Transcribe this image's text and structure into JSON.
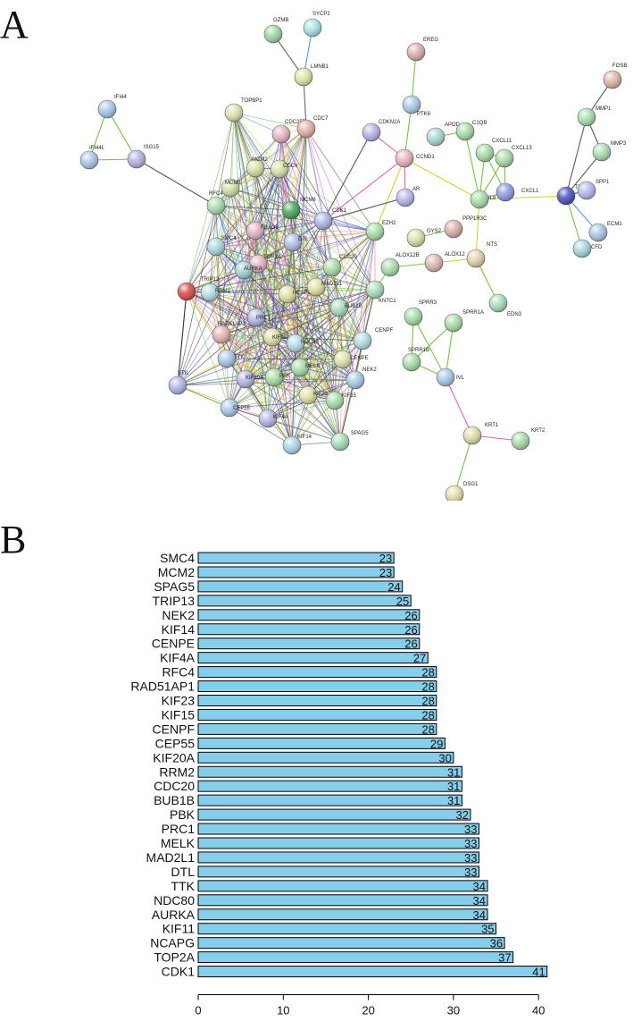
{
  "panels": {
    "a": "A",
    "b": "B"
  },
  "network": {
    "nodes": [
      {
        "id": "GZMB",
        "color": "#9fd6a3"
      },
      {
        "id": "SYCP2",
        "color": "#a7e3e6"
      },
      {
        "id": "LMNB1",
        "color": "#e0e6a8"
      },
      {
        "id": "EREG",
        "color": "#d9aeb0"
      },
      {
        "id": "PTK6",
        "color": "#a9cbe8"
      },
      {
        "id": "FOSB",
        "color": "#dcb5a6"
      },
      {
        "id": "IFI44",
        "color": "#a9c8e6"
      },
      {
        "id": "IFI44L",
        "color": "#a9c8e6"
      },
      {
        "id": "ISG15",
        "color": "#b5b3e4"
      },
      {
        "id": "TOPBP1",
        "color": "#dfe0a9"
      },
      {
        "id": "CDC25B",
        "color": "#e4b3c1"
      },
      {
        "id": "CDC7",
        "color": "#e4b0a8"
      },
      {
        "id": "CDKN2A",
        "color": "#b6b3e6"
      },
      {
        "id": "APOD",
        "color": "#a8d8d6"
      },
      {
        "id": "C1QB",
        "color": "#a8dca6"
      },
      {
        "id": "CCND1",
        "color": "#e8b3c0"
      },
      {
        "id": "CXCL11",
        "color": "#a8dca8"
      },
      {
        "id": "CXCL13",
        "color": "#a8dca8"
      },
      {
        "id": "MMP1",
        "color": "#a9dcb0"
      },
      {
        "id": "MMP3",
        "color": "#a9dcb0"
      },
      {
        "id": "MCM2",
        "color": "#d3e0a4"
      },
      {
        "id": "CDC6",
        "color": "#d9e0a4"
      },
      {
        "id": "MCM3",
        "color": "#cfe3a8"
      },
      {
        "id": "MCM6",
        "color": "#49a558"
      },
      {
        "id": "AR",
        "color": "#b3b8ec"
      },
      {
        "id": "IL8",
        "color": "#a9dca9"
      },
      {
        "id": "CXCL1",
        "color": "#8e9ae0"
      },
      {
        "id": "TIMP1",
        "color": "#4a4fbf"
      },
      {
        "id": "SPP1",
        "color": "#b5b8ec"
      },
      {
        "id": "RFC4",
        "color": "#aadcaf"
      },
      {
        "id": "FBXO5",
        "color": "#e0b5c4"
      },
      {
        "id": "CDK1",
        "color": "#aeb4e8"
      },
      {
        "id": "EZH2",
        "color": "#a8dca8"
      },
      {
        "id": "ECM1",
        "color": "#a9c8e6"
      },
      {
        "id": "GYS2",
        "color": "#d8e0a4"
      },
      {
        "id": "PPP1R3C",
        "color": "#d9b0a8"
      },
      {
        "id": "SMC4",
        "color": "#a9d6dc"
      },
      {
        "id": "CFD",
        "color": "#a8d6dc"
      },
      {
        "id": "DTL",
        "color": "#b0bce8"
      },
      {
        "id": "TOP2A",
        "color": "#e4b5c4"
      },
      {
        "id": "NTS",
        "color": "#e0d4a8"
      },
      {
        "id": "AURKA",
        "color": "#9fd0d6"
      },
      {
        "id": "CDC20",
        "color": "#a8dca8"
      },
      {
        "id": "ALOX12B",
        "color": "#a8dca8"
      },
      {
        "id": "ALOX12",
        "color": "#dcb5b0"
      },
      {
        "id": "TRIP13",
        "color": "#d84a4a"
      },
      {
        "id": "RRM2",
        "color": "#b3dce6"
      },
      {
        "id": "NCAPG",
        "color": "#e0e0a8"
      },
      {
        "id": "MAD2L1",
        "color": "#e0e0a8"
      },
      {
        "id": "KNTC1",
        "color": "#a8dcbc"
      },
      {
        "id": "PRC1",
        "color": "#b0b8e8"
      },
      {
        "id": "BUB1B",
        "color": "#a8dcc0"
      },
      {
        "id": "EDN3",
        "color": "#a8dcbc"
      },
      {
        "id": "SPRR3",
        "color": "#a8dca8"
      },
      {
        "id": "SPRR1A",
        "color": "#a8dca8"
      },
      {
        "id": "RAD51AP1",
        "color": "#e4b3b3"
      },
      {
        "id": "KIF11",
        "color": "#e0e0a8"
      },
      {
        "id": "NDC80",
        "color": "#b3dce6"
      },
      {
        "id": "CENPF",
        "color": "#b3dce6"
      },
      {
        "id": "TTK",
        "color": "#a9c8e6"
      },
      {
        "id": "CENPE",
        "color": "#e0e0a8"
      },
      {
        "id": "SPRR1B",
        "color": "#a8dca8"
      },
      {
        "id": "IVL",
        "color": "#a9c8e6"
      },
      {
        "id": "STIL",
        "color": "#aeb6e8"
      },
      {
        "id": "KIF20A",
        "color": "#b3b6e8"
      },
      {
        "id": "PBK",
        "color": "#a8dca8"
      },
      {
        "id": "MELK",
        "color": "#a8dca8"
      },
      {
        "id": "NEK2",
        "color": "#a9c8e6"
      },
      {
        "id": "CEP55",
        "color": "#a9c8e6"
      },
      {
        "id": "KIF23",
        "color": "#e0e0a8"
      },
      {
        "id": "KIF15",
        "color": "#a8dca8"
      },
      {
        "id": "KIF4A",
        "color": "#b3b6e8"
      },
      {
        "id": "KIF14",
        "color": "#a9d6e6"
      },
      {
        "id": "SPAG5",
        "color": "#a8dcb8"
      },
      {
        "id": "KRT1",
        "color": "#e0dca8"
      },
      {
        "id": "KRT2",
        "color": "#a8dca8"
      },
      {
        "id": "DSG1",
        "color": "#e0e0a8"
      }
    ]
  },
  "chart_data": {
    "type": "bar",
    "orientation": "horizontal",
    "categories": [
      "SMC4",
      "MCM2",
      "SPAG5",
      "TRIP13",
      "NEK2",
      "KIF14",
      "CENPE",
      "KIF4A",
      "RFC4",
      "RAD51AP1",
      "KIF23",
      "KIF15",
      "CENPF",
      "CEP55",
      "KIF20A",
      "RRM2",
      "CDC20",
      "BUB1B",
      "PBK",
      "PRC1",
      "MELK",
      "MAD2L1",
      "DTL",
      "TTK",
      "NDC80",
      "AURKA",
      "KIF11",
      "NCAPG",
      "TOP2A",
      "CDK1"
    ],
    "values": [
      23,
      23,
      24,
      25,
      26,
      26,
      26,
      27,
      28,
      28,
      28,
      28,
      28,
      29,
      30,
      31,
      31,
      31,
      32,
      33,
      33,
      33,
      33,
      34,
      34,
      34,
      35,
      36,
      37,
      41
    ],
    "xlim": [
      0,
      42
    ],
    "xticks": [
      0,
      10,
      20,
      30,
      40
    ],
    "bar_color": "#87ceeb",
    "bar_outline": "#000000",
    "data_labels": true,
    "grid": false
  }
}
